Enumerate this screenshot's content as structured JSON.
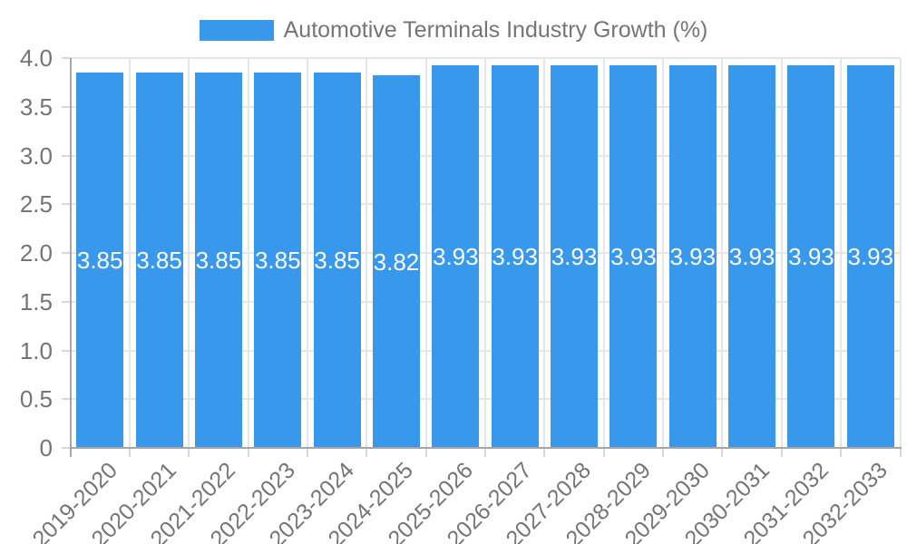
{
  "chart_data": {
    "type": "bar",
    "title": "Automotive Terminals Industry Growth (%)",
    "categories": [
      "2019-2020",
      "2020-2021",
      "2021-2022",
      "2022-2023",
      "2023-2024",
      "2024-2025",
      "2025-2026",
      "2026-2027",
      "2027-2028",
      "2028-2029",
      "2029-2030",
      "2030-2031",
      "2031-2032",
      "2032-2033"
    ],
    "values": [
      3.85,
      3.85,
      3.85,
      3.85,
      3.85,
      3.82,
      3.93,
      3.93,
      3.93,
      3.93,
      3.93,
      3.93,
      3.93,
      3.93
    ],
    "value_labels": [
      "3.85",
      "3.85",
      "3.85",
      "3.85",
      "3.85",
      "3.82",
      "3.93",
      "3.93",
      "3.93",
      "3.93",
      "3.93",
      "3.93",
      "3.93",
      "3.93"
    ],
    "xlabel": "",
    "ylabel": "",
    "ylim": [
      0,
      4
    ],
    "ytick_values": [
      0,
      0.5,
      1.0,
      1.5,
      2.0,
      2.5,
      3.0,
      3.5,
      4.0
    ],
    "ytick_labels": [
      "0",
      "0.5",
      "1.0",
      "1.5",
      "2.0",
      "2.5",
      "3.0",
      "3.5",
      "4.0"
    ],
    "grid": true,
    "legend_position": "top",
    "colors": {
      "bar": "#3898EC",
      "bar_label_text": "#FFFFFF",
      "axis_text": "#757575",
      "axis_line": "#A6A6A6",
      "gridline": "#E6E6E6",
      "tick": "#D8D8D8",
      "background": "#FFFFFF"
    }
  }
}
